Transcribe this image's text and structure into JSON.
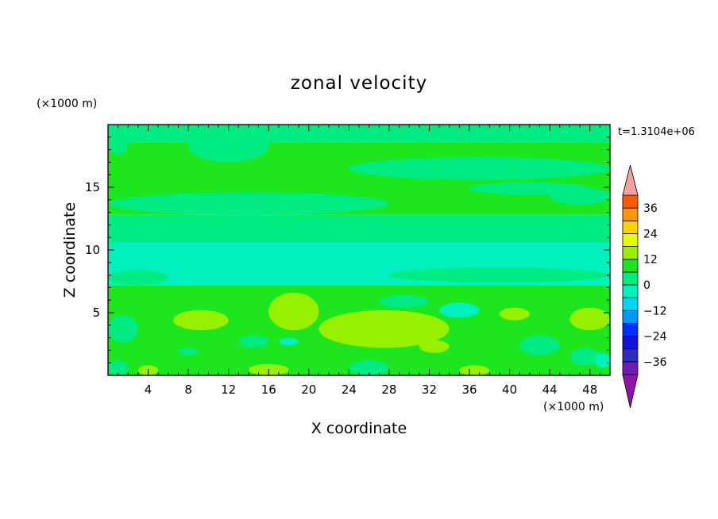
{
  "chart_data": {
    "type": "heatmap",
    "title": "zonal velocity",
    "xlabel": "X coordinate",
    "ylabel": "Z coordinate",
    "x_unit_label": "(×1000 m)",
    "y_unit_label": "(×1000 m)",
    "time_label": "t=1.3104e+06",
    "xlim": [
      0,
      50
    ],
    "ylim": [
      0,
      20
    ],
    "x_ticks": [
      4,
      8,
      12,
      16,
      20,
      24,
      28,
      32,
      36,
      40,
      44,
      48
    ],
    "y_ticks": [
      5,
      10,
      15
    ],
    "grid": false,
    "colorbar": {
      "placement": "right",
      "min": -42,
      "max": 42,
      "step": 6,
      "ticks": [
        36,
        24,
        12,
        0,
        -12,
        -24,
        -36
      ],
      "levels": [
        {
          "range": [
            -42,
            -36
          ],
          "color": "#6a1fb4"
        },
        {
          "range": [
            -36,
            -30
          ],
          "color": "#2d2dbe"
        },
        {
          "range": [
            -30,
            -24
          ],
          "color": "#1212d6"
        },
        {
          "range": [
            -24,
            -18
          ],
          "color": "#0030ff"
        },
        {
          "range": [
            -18,
            -12
          ],
          "color": "#0096ff"
        },
        {
          "range": [
            -12,
            -6
          ],
          "color": "#00d7f0"
        },
        {
          "range": [
            -6,
            0
          ],
          "color": "#00f0be"
        },
        {
          "range": [
            0,
            6
          ],
          "color": "#00eb82"
        },
        {
          "range": [
            6,
            12
          ],
          "color": "#1ee61e"
        },
        {
          "range": [
            12,
            18
          ],
          "color": "#96f000"
        },
        {
          "range": [
            18,
            24
          ],
          "color": "#e6ff00"
        },
        {
          "range": [
            24,
            30
          ],
          "color": "#ffd200"
        },
        {
          "range": [
            30,
            36
          ],
          "color": "#ff9600"
        },
        {
          "range": [
            36,
            42
          ],
          "color": "#ff5a00"
        }
      ],
      "under_color": "#8c14aa",
      "over_color": "#f5a0a0"
    },
    "bands": [
      {
        "z": [
          18.6,
          20.0
        ],
        "value": 3
      },
      {
        "z": [
          12.8,
          18.6
        ],
        "value": 7
      },
      {
        "z": [
          10.6,
          12.8
        ],
        "value": 2
      },
      {
        "z": [
          7.2,
          10.6
        ],
        "value": -4
      },
      {
        "z": [
          0.0,
          7.2
        ],
        "value": 8
      }
    ],
    "regions": [
      {
        "x": [
          0.0,
          2.0
        ],
        "z": [
          17.6,
          19.4
        ],
        "value": 3
      },
      {
        "x": [
          8.0,
          16.0
        ],
        "z": [
          17.0,
          19.6
        ],
        "value": 3
      },
      {
        "x": [
          24.0,
          50.0
        ],
        "z": [
          15.6,
          17.4
        ],
        "value": 3
      },
      {
        "x": [
          36.0,
          48.0
        ],
        "z": [
          14.4,
          15.4
        ],
        "value": 3
      },
      {
        "x": [
          0.0,
          28.0
        ],
        "z": [
          12.8,
          14.6
        ],
        "value": 3
      },
      {
        "x": [
          44.0,
          50.0
        ],
        "z": [
          13.6,
          15.0
        ],
        "value": 3
      },
      {
        "x": [
          10.0,
          30.0
        ],
        "z": [
          10.6,
          11.6
        ],
        "value": 3
      },
      {
        "x": [
          0.0,
          6.0
        ],
        "z": [
          7.2,
          8.4
        ],
        "value": 3
      },
      {
        "x": [
          28.0,
          50.0
        ],
        "z": [
          7.4,
          8.6
        ],
        "value": 3
      },
      {
        "x": [
          6.5,
          12.0
        ],
        "z": [
          3.6,
          5.2
        ],
        "value": 16
      },
      {
        "x": [
          21.0,
          34.0
        ],
        "z": [
          2.2,
          5.2
        ],
        "value": 16
      },
      {
        "x": [
          16.0,
          21.0
        ],
        "z": [
          3.6,
          6.6
        ],
        "value": 16
      },
      {
        "x": [
          39.0,
          42.0
        ],
        "z": [
          4.4,
          5.4
        ],
        "value": 16
      },
      {
        "x": [
          46.0,
          50.0
        ],
        "z": [
          3.6,
          5.4
        ],
        "value": 16
      },
      {
        "x": [
          31.0,
          34.0
        ],
        "z": [
          1.8,
          2.8
        ],
        "value": 16
      },
      {
        "x": [
          3.0,
          5.0
        ],
        "z": [
          0.0,
          0.8
        ],
        "value": 16
      },
      {
        "x": [
          14.0,
          18.0
        ],
        "z": [
          0.0,
          0.9
        ],
        "value": 16
      },
      {
        "x": [
          35.0,
          38.0
        ],
        "z": [
          0.0,
          0.8
        ],
        "value": 16
      },
      {
        "x": [
          0.0,
          3.0
        ],
        "z": [
          2.6,
          4.8
        ],
        "value": 3
      },
      {
        "x": [
          7.0,
          9.0
        ],
        "z": [
          1.6,
          2.2
        ],
        "value": 3
      },
      {
        "x": [
          13.0,
          16.0
        ],
        "z": [
          2.2,
          3.2
        ],
        "value": 3
      },
      {
        "x": [
          24.0,
          28.0
        ],
        "z": [
          0.0,
          1.2
        ],
        "value": 3
      },
      {
        "x": [
          41.0,
          45.0
        ],
        "z": [
          1.6,
          3.2
        ],
        "value": 3
      },
      {
        "x": [
          46.0,
          49.0
        ],
        "z": [
          0.8,
          2.2
        ],
        "value": 3
      },
      {
        "x": [
          27.0,
          32.0
        ],
        "z": [
          5.4,
          6.4
        ],
        "value": 3
      },
      {
        "x": [
          0.0,
          2.0
        ],
        "z": [
          0.0,
          1.2
        ],
        "value": 3
      },
      {
        "x": [
          33.0,
          37.0
        ],
        "z": [
          4.6,
          5.8
        ],
        "value": -4
      },
      {
        "x": [
          48.5,
          50.0
        ],
        "z": [
          0.6,
          1.8
        ],
        "value": -4
      },
      {
        "x": [
          17.0,
          19.0
        ],
        "z": [
          2.4,
          3.0
        ],
        "value": -4
      }
    ]
  }
}
